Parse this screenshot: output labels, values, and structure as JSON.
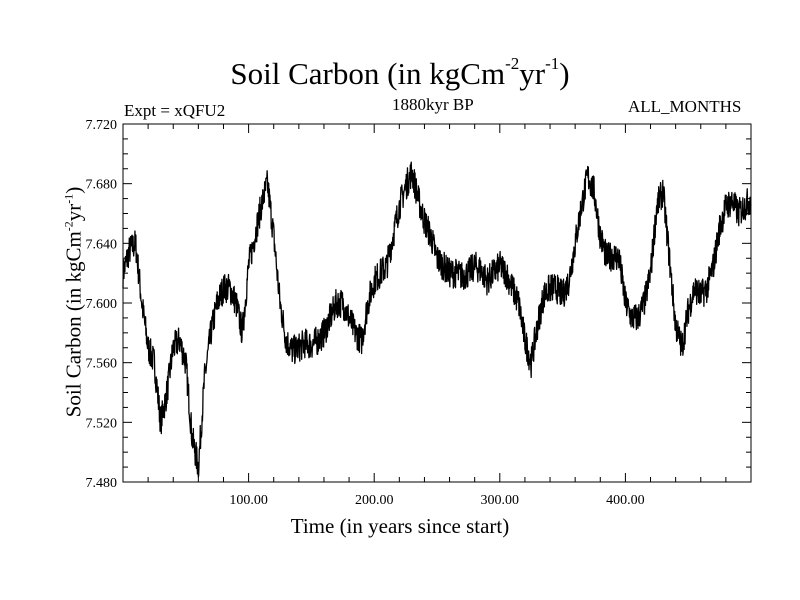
{
  "chart_data": {
    "type": "line",
    "title_main": "Soil Carbon (in kgCm",
    "title_exp1": "-2",
    "title_mid": "yr",
    "title_exp2": "-1",
    "title_close": ")",
    "subtitle": "1880kyr BP",
    "experiment": "Expt = xQFU2",
    "season": "ALL_MONTHS",
    "xlabel": "Time (in years since start)",
    "ylabel_main": "Soil Carbon (in kgCm",
    "ylabel_exp1": "-2",
    "ylabel_mid": "yr",
    "ylabel_exp2": "-1",
    "ylabel_close": ")",
    "xlim": [
      0,
      500
    ],
    "ylim": [
      7.48,
      7.72
    ],
    "xticks": [
      100,
      200,
      300,
      400
    ],
    "xtick_labels": [
      "100.00",
      "200.00",
      "300.00",
      "400.00"
    ],
    "yticks": [
      7.48,
      7.52,
      7.56,
      7.6,
      7.64,
      7.68,
      7.72
    ],
    "ytick_labels": [
      "7.480",
      "7.520",
      "7.560",
      "7.600",
      "7.640",
      "7.680",
      "7.720"
    ],
    "series": [
      {
        "name": "Soil Carbon",
        "x": [
          0,
          5,
          10,
          15,
          20,
          25,
          30,
          35,
          40,
          45,
          50,
          55,
          60,
          65,
          70,
          75,
          80,
          85,
          90,
          95,
          100,
          105,
          110,
          115,
          120,
          125,
          130,
          135,
          140,
          145,
          150,
          155,
          160,
          165,
          170,
          175,
          180,
          185,
          190,
          195,
          200,
          205,
          210,
          215,
          220,
          225,
          230,
          235,
          240,
          245,
          250,
          255,
          260,
          265,
          270,
          275,
          280,
          285,
          290,
          295,
          300,
          305,
          310,
          315,
          320,
          325,
          330,
          335,
          340,
          345,
          350,
          355,
          360,
          365,
          370,
          375,
          380,
          385,
          390,
          395,
          400,
          405,
          410,
          415,
          420,
          425,
          430,
          435,
          440,
          445,
          450,
          455,
          460,
          465,
          470,
          475,
          480,
          485,
          490,
          495,
          500
        ],
        "values": [
          7.62,
          7.635,
          7.64,
          7.6,
          7.57,
          7.56,
          7.52,
          7.54,
          7.57,
          7.575,
          7.56,
          7.51,
          7.49,
          7.55,
          7.58,
          7.6,
          7.61,
          7.61,
          7.6,
          7.58,
          7.625,
          7.645,
          7.665,
          7.68,
          7.645,
          7.6,
          7.575,
          7.568,
          7.57,
          7.573,
          7.572,
          7.575,
          7.58,
          7.59,
          7.6,
          7.6,
          7.59,
          7.58,
          7.575,
          7.6,
          7.615,
          7.62,
          7.625,
          7.645,
          7.665,
          7.678,
          7.688,
          7.67,
          7.655,
          7.645,
          7.63,
          7.625,
          7.62,
          7.62,
          7.618,
          7.62,
          7.625,
          7.622,
          7.615,
          7.62,
          7.625,
          7.62,
          7.61,
          7.6,
          7.575,
          7.56,
          7.585,
          7.605,
          7.61,
          7.61,
          7.605,
          7.615,
          7.64,
          7.665,
          7.685,
          7.675,
          7.645,
          7.63,
          7.632,
          7.63,
          7.6,
          7.59,
          7.59,
          7.6,
          7.62,
          7.665,
          7.675,
          7.63,
          7.585,
          7.57,
          7.595,
          7.61,
          7.605,
          7.61,
          7.625,
          7.65,
          7.665,
          7.668,
          7.66,
          7.665,
          7.67
        ],
        "color": "#000000"
      }
    ]
  }
}
